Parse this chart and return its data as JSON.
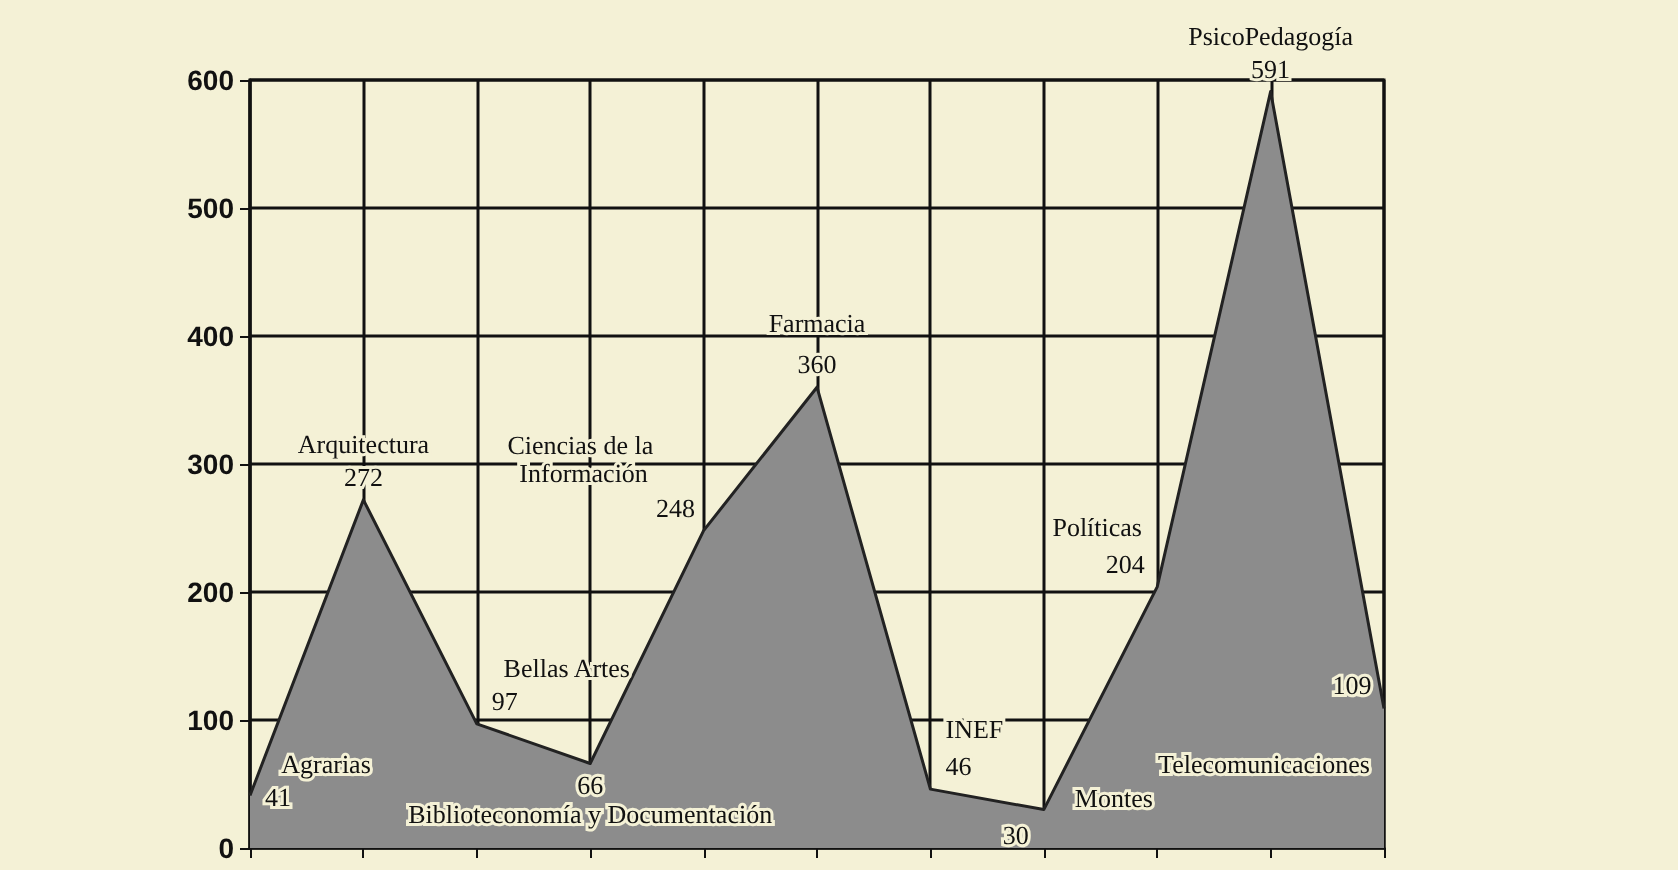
{
  "chart_data": {
    "type": "area",
    "categories": [
      null,
      null,
      null,
      null,
      null,
      null,
      null,
      null,
      null,
      null,
      null
    ],
    "annotations": [
      "Agrarias",
      "Arquitectura",
      "Bellas Artes",
      "Biblioteconomía y Documentación",
      "Ciencias de la Información",
      "Farmacia",
      "INEF",
      "Montes",
      "Políticas",
      "PsicoPedagogía",
      "Telecomunicaciones"
    ],
    "series": [
      {
        "color": "#8c8c8c",
        "values": [
          41,
          272,
          97,
          66,
          248,
          360,
          46,
          30,
          204,
          591,
          109
        ]
      }
    ],
    "ylim": [
      0,
      600
    ],
    "yticks": [
      0,
      100,
      200,
      300,
      400,
      500,
      600
    ],
    "grid": true,
    "data_labels": true,
    "tick_labels": "y",
    "marker": "none"
  }
}
